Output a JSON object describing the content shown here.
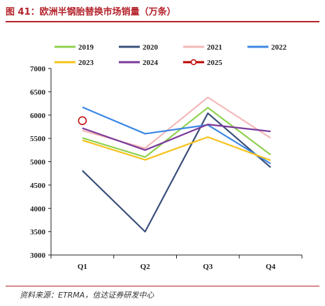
{
  "header": {
    "title": "图 41：欧洲半钢胎替换市场销量（万条）"
  },
  "footer": {
    "source": "资料来源：ETRMA，信达证券研发中心"
  },
  "chart_data": {
    "type": "line",
    "title": "欧洲半钢胎替换市场销量（万条）",
    "xlabel": "",
    "ylabel": "",
    "categories": [
      "Q1",
      "Q2",
      "Q3",
      "Q4"
    ],
    "ylim": [
      3000,
      7000
    ],
    "yticks": [
      3000,
      3500,
      4000,
      4500,
      5000,
      5500,
      6000,
      6500,
      7000
    ],
    "grid": false,
    "legend_position": "top",
    "series": [
      {
        "name": "2019",
        "color": "#8fd14f",
        "values": [
          5510,
          5100,
          6160,
          5150
        ]
      },
      {
        "name": "2020",
        "color": "#3a4f7a",
        "values": [
          4810,
          3500,
          6040,
          4880
        ]
      },
      {
        "name": "2021",
        "color": "#f4b8b8",
        "values": [
          5670,
          5290,
          6380,
          5510
        ]
      },
      {
        "name": "2022",
        "color": "#3c87e6",
        "values": [
          6170,
          5600,
          5790,
          4960
        ]
      },
      {
        "name": "2023",
        "color": "#f5c21b",
        "values": [
          5460,
          5040,
          5530,
          5030
        ]
      },
      {
        "name": "2024",
        "color": "#7a3a9a",
        "values": [
          5720,
          5250,
          5800,
          5650
        ]
      },
      {
        "name": "2025",
        "color": "#c00000",
        "values": [
          5880,
          null,
          null,
          null
        ],
        "marker": "circle"
      }
    ]
  }
}
